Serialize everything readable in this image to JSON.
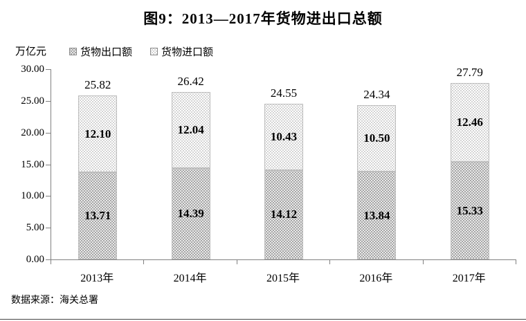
{
  "title": "图9：2013—2017年货物进出口总额",
  "y_axis": {
    "unit": "万亿元",
    "ticks": [
      "30.00",
      "25.00",
      "20.00",
      "15.00",
      "10.00",
      "5.00",
      "0.00"
    ]
  },
  "legend": [
    {
      "label": "货物出口额",
      "swatch": "export"
    },
    {
      "label": "货物进口额",
      "swatch": "import"
    }
  ],
  "source": "数据来源：海关总署",
  "colors": {
    "export_fill": "#a6a6a6",
    "export_dot": "#ffffff",
    "import_fill": "#ffffff",
    "import_dot": "#c6c6c6",
    "axis": "#808080",
    "text": "#000000"
  },
  "chart_data": {
    "type": "bar",
    "stacked": true,
    "categories": [
      "2013年",
      "2014年",
      "2015年",
      "2016年",
      "2017年"
    ],
    "series": [
      {
        "name": "货物出口额",
        "values": [
          13.71,
          14.39,
          14.12,
          13.84,
          15.33
        ]
      },
      {
        "name": "货物进口额",
        "values": [
          12.1,
          12.04,
          10.43,
          10.5,
          12.46
        ]
      }
    ],
    "totals": [
      25.82,
      26.42,
      24.55,
      24.34,
      27.79
    ],
    "title": "图9：2013—2017年货物进出口总额",
    "xlabel": "",
    "ylabel": "万亿元",
    "ylim": [
      0,
      30
    ],
    "grid": false,
    "legend_position": "top"
  }
}
